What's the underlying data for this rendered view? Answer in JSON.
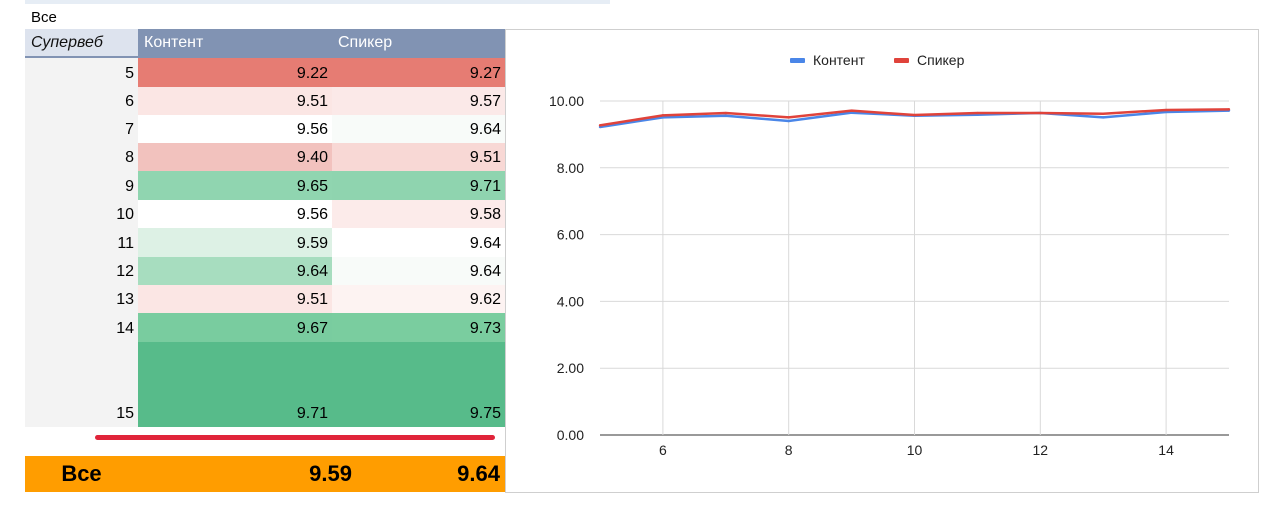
{
  "sheet": {
    "top_label": "Все",
    "headers": {
      "index": "Супервеб",
      "col1": "Контент",
      "col2": "Спикер"
    },
    "rows": [
      {
        "index": "5",
        "col1": "9.22",
        "col2": "9.27",
        "col1_color": "#e67c73",
        "col2_color": "#e67c73"
      },
      {
        "index": "6",
        "col1": "9.51",
        "col2": "9.57",
        "col1_color": "#fbe6e4",
        "col2_color": "#fbe9e8"
      },
      {
        "index": "7",
        "col1": "9.56",
        "col2": "9.64",
        "col1_color": "#ffffff",
        "col2_color": "#f8fbf9"
      },
      {
        "index": "8",
        "col1": "9.40",
        "col2": "9.51",
        "col1_color": "#f2c2be",
        "col2_color": "#f8d8d5"
      },
      {
        "index": "9",
        "col1": "9.65",
        "col2": "9.71",
        "col1_color": "#90d5b0",
        "col2_color": "#8fd4af"
      },
      {
        "index": "10",
        "col1": "9.56",
        "col2": "9.58",
        "col1_color": "#ffffff",
        "col2_color": "#fcebea"
      },
      {
        "index": "11",
        "col1": "9.59",
        "col2": "9.64",
        "col1_color": "#ddf1e5",
        "col2_color": "#ffffff"
      },
      {
        "index": "12",
        "col1": "9.64",
        "col2": "9.64",
        "col1_color": "#a7ddbf",
        "col2_color": "#f8fbf9"
      },
      {
        "index": "13",
        "col1": "9.51",
        "col2": "9.62",
        "col1_color": "#fbe6e4",
        "col2_color": "#fdf3f2"
      },
      {
        "index": "14",
        "col1": "9.67",
        "col2": "9.73",
        "col1_color": "#79cc9f",
        "col2_color": "#7acd9f"
      },
      {
        "index": "15",
        "col1": "9.71",
        "col2": "9.75",
        "col1_color": "#57bb8a",
        "col2_color": "#57bb8a"
      }
    ],
    "total": {
      "label": "Все",
      "col1": "9.59",
      "col2": "9.64",
      "color": "#ff9d00"
    }
  },
  "chart_data": {
    "type": "line",
    "x": [
      5,
      6,
      7,
      8,
      9,
      10,
      11,
      12,
      13,
      14,
      15
    ],
    "series": [
      {
        "name": "Контент",
        "color": "#4a86e8",
        "values": [
          9.22,
          9.51,
          9.56,
          9.4,
          9.65,
          9.56,
          9.59,
          9.64,
          9.51,
          9.67,
          9.71
        ]
      },
      {
        "name": "Спикер",
        "color": "#e0433b",
        "values": [
          9.27,
          9.57,
          9.64,
          9.51,
          9.71,
          9.58,
          9.64,
          9.64,
          9.62,
          9.73,
          9.75
        ]
      }
    ],
    "y_ticks": [
      "0.00",
      "2.00",
      "4.00",
      "6.00",
      "8.00",
      "10.00"
    ],
    "x_ticks": [
      "6",
      "8",
      "10",
      "12",
      "14"
    ],
    "ylim": [
      0,
      10
    ],
    "xlim": [
      5,
      15
    ],
    "legend": "top-center",
    "grid": true,
    "title": "",
    "xlabel": "",
    "ylabel": ""
  }
}
